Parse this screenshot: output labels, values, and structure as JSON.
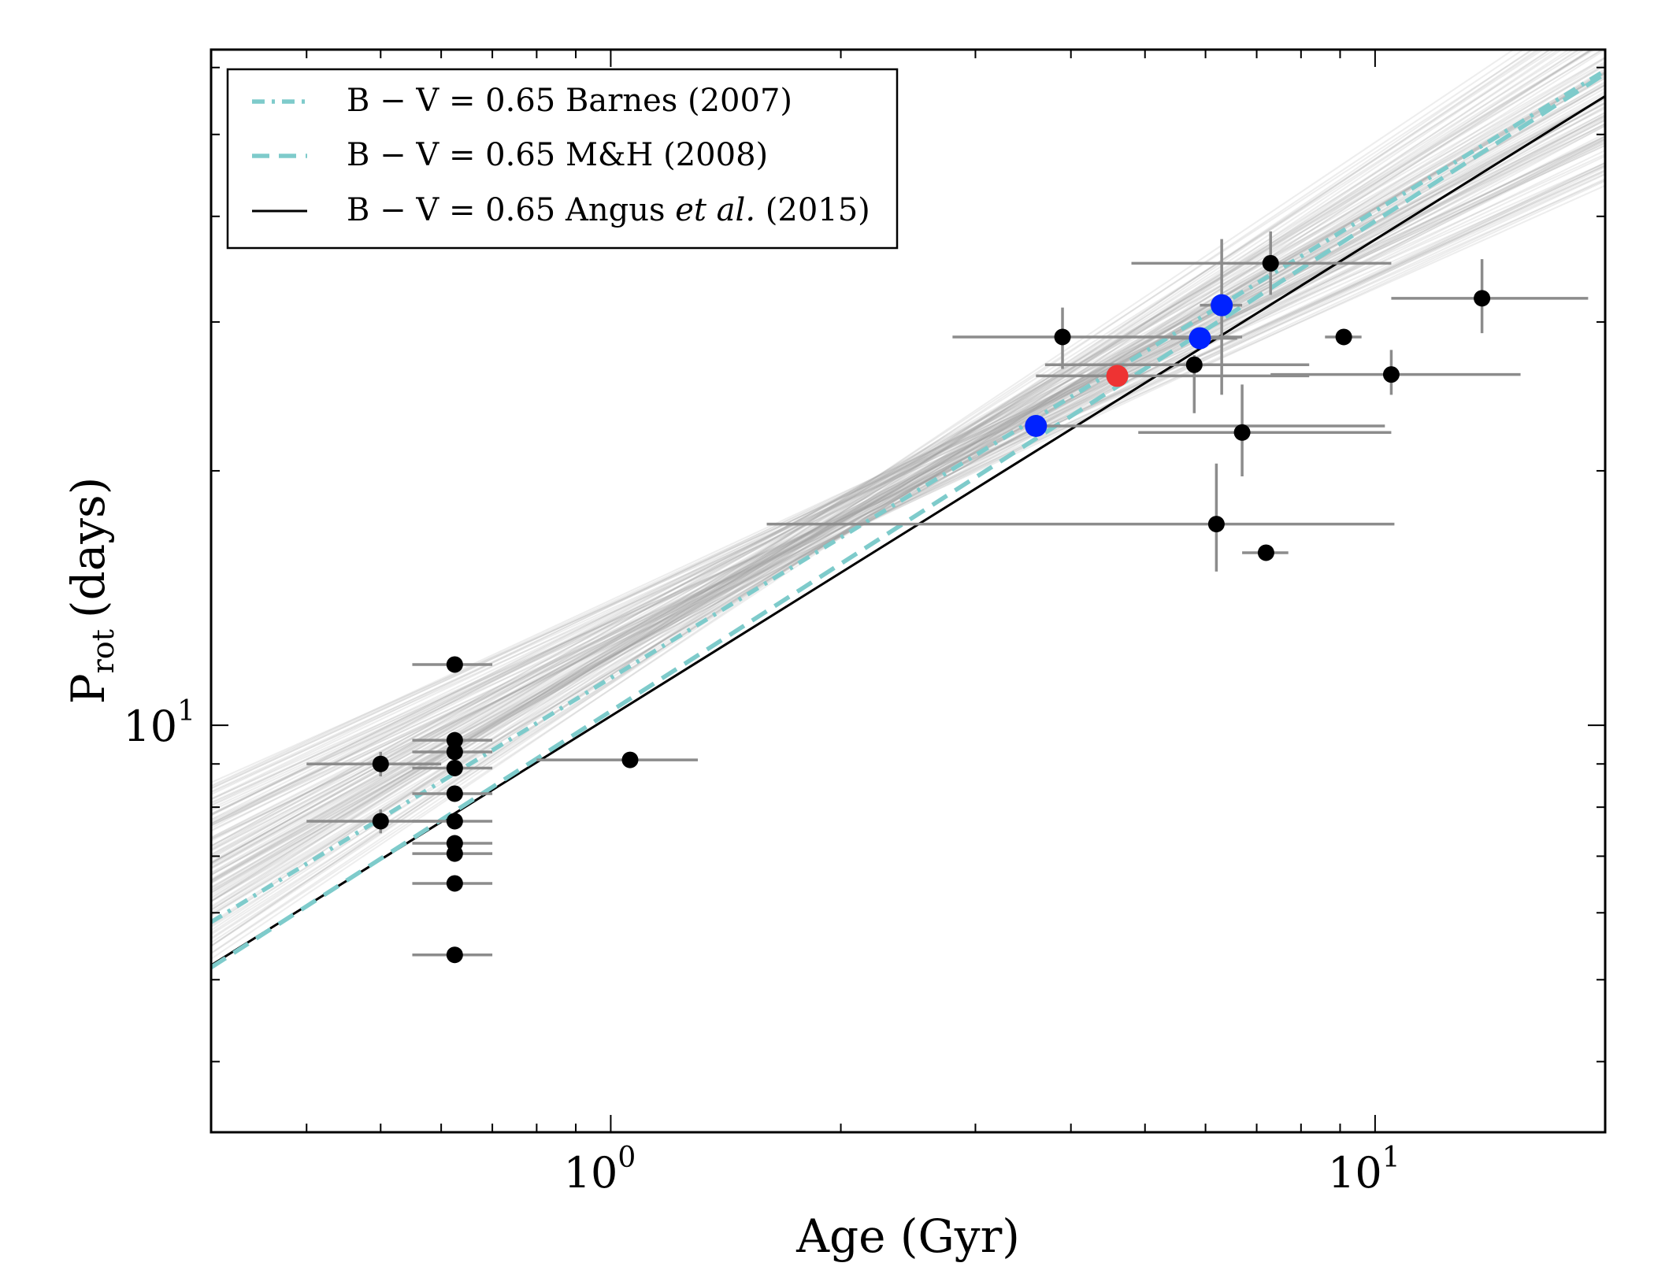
{
  "chart_data": {
    "type": "scatter",
    "x_scale": "log",
    "y_scale": "log",
    "xlim": [
      0.3,
      20
    ],
    "ylim": [
      3.3,
      63
    ],
    "xlabel": "Age (Gyr)",
    "ylabel_main": "P",
    "ylabel_sub": "rot",
    "ylabel_tail": "(days)",
    "x_ticks": [
      {
        "value": 1,
        "base": "10",
        "exp": "0"
      },
      {
        "value": 10,
        "base": "10",
        "exp": "1"
      }
    ],
    "y_ticks": [
      {
        "value": 10,
        "base": "10",
        "exp": "1"
      }
    ],
    "grid": false,
    "legend_position": "top-left",
    "legend": [
      {
        "style": "dashdot",
        "color": "#7ecbcb",
        "text": "B − V = 0.65 Barnes (2007)",
        "italic": "",
        "tail": ""
      },
      {
        "style": "dashed",
        "color": "#7ecbcb",
        "text": "B − V = 0.65 M&H (2008)",
        "italic": "",
        "tail": ""
      },
      {
        "style": "solid",
        "color": "#000000",
        "text": "B − V = 0.65 Angus ",
        "italic": "et al.",
        "tail": " (2015)"
      }
    ],
    "model_lines": [
      {
        "name": "Barnes (2007)",
        "style": "dashdot",
        "color": "#7ecbcb",
        "points": [
          [
            0.3,
            5.85
          ],
          [
            20,
            59.5
          ]
        ]
      },
      {
        "name": "M&H (2008)",
        "style": "dashed",
        "color": "#7ecbcb",
        "points": [
          [
            0.3,
            5.17
          ],
          [
            20,
            59.0
          ]
        ]
      },
      {
        "name": "Angus et al. (2015)",
        "style": "solid",
        "color": "#000000",
        "points": [
          [
            0.3,
            5.2
          ],
          [
            20,
            55.5
          ]
        ]
      }
    ],
    "posterior_samples": {
      "color": "#9a9a9a",
      "count": 120,
      "pivot": [
        2.2,
        18.5
      ],
      "slope_range": [
        0.4,
        0.62
      ]
    },
    "points": [
      {
        "x": 0.5,
        "y": 9.0,
        "xerr": [
          0.4,
          0.6
        ],
        "yerr": [
          8.7,
          9.3
        ],
        "color": "#000000"
      },
      {
        "x": 0.5,
        "y": 7.7,
        "xerr": [
          0.4,
          0.6
        ],
        "yerr": [
          7.45,
          7.95
        ],
        "color": "#000000"
      },
      {
        "x": 0.625,
        "y": 11.8,
        "xerr": [
          0.55,
          0.7
        ],
        "yerr": null,
        "color": "#000000"
      },
      {
        "x": 0.625,
        "y": 9.6,
        "xerr": [
          0.55,
          0.7
        ],
        "yerr": null,
        "color": "#000000"
      },
      {
        "x": 0.625,
        "y": 9.3,
        "xerr": [
          0.55,
          0.7
        ],
        "yerr": null,
        "color": "#000000"
      },
      {
        "x": 0.625,
        "y": 8.9,
        "xerr": [
          0.55,
          0.7
        ],
        "yerr": null,
        "color": "#000000"
      },
      {
        "x": 0.625,
        "y": 8.3,
        "xerr": [
          0.55,
          0.7
        ],
        "yerr": null,
        "color": "#000000"
      },
      {
        "x": 0.625,
        "y": 7.7,
        "xerr": [
          0.55,
          0.7
        ],
        "yerr": null,
        "color": "#000000"
      },
      {
        "x": 0.625,
        "y": 7.25,
        "xerr": [
          0.55,
          0.7
        ],
        "yerr": null,
        "color": "#000000"
      },
      {
        "x": 0.625,
        "y": 7.05,
        "xerr": [
          0.55,
          0.7
        ],
        "yerr": null,
        "color": "#000000"
      },
      {
        "x": 0.625,
        "y": 6.5,
        "xerr": [
          0.55,
          0.7
        ],
        "yerr": null,
        "color": "#000000"
      },
      {
        "x": 0.625,
        "y": 5.35,
        "xerr": [
          0.55,
          0.7
        ],
        "yerr": null,
        "color": "#000000"
      },
      {
        "x": 1.06,
        "y": 9.1,
        "xerr": [
          0.8,
          1.3
        ],
        "yerr": null,
        "color": "#000000"
      },
      {
        "x": 3.9,
        "y": 28.8,
        "xerr": [
          2.8,
          6.7
        ],
        "yerr": [
          26.4,
          31.2
        ],
        "color": "#000000"
      },
      {
        "x": 3.6,
        "y": 22.6,
        "xerr": [
          3.5,
          10.3
        ],
        "yerr": null,
        "color": "#0022ff"
      },
      {
        "x": 4.6,
        "y": 25.9,
        "xerr": [
          3.6,
          8.2
        ],
        "yerr": null,
        "color": "#ee3333"
      },
      {
        "x": 5.9,
        "y": 28.7,
        "xerr": [
          5.4,
          6.6
        ],
        "yerr": null,
        "color": "#0022ff"
      },
      {
        "x": 6.3,
        "y": 31.4,
        "xerr": [
          5.9,
          6.7
        ],
        "yerr": [
          24.6,
          37.6
        ],
        "color": "#0022ff"
      },
      {
        "x": 5.8,
        "y": 26.7,
        "xerr": [
          3.7,
          8.2
        ],
        "yerr": [
          23.4,
          27.4
        ],
        "color": "#000000"
      },
      {
        "x": 7.3,
        "y": 35.2,
        "xerr": [
          4.8,
          10.5
        ],
        "yerr": [
          32.3,
          38.4
        ],
        "color": "#000000"
      },
      {
        "x": 6.7,
        "y": 22.2,
        "xerr": [
          4.9,
          10.5
        ],
        "yerr": [
          19.7,
          25.3
        ],
        "color": "#000000"
      },
      {
        "x": 6.2,
        "y": 17.3,
        "xerr": [
          1.6,
          10.6
        ],
        "yerr": [
          15.2,
          20.4
        ],
        "color": "#000000"
      },
      {
        "x": 7.2,
        "y": 16.0,
        "xerr": [
          6.7,
          7.7
        ],
        "yerr": null,
        "color": "#000000"
      },
      {
        "x": 9.1,
        "y": 28.8,
        "xerr": [
          8.6,
          9.6
        ],
        "yerr": null,
        "color": "#000000"
      },
      {
        "x": 10.5,
        "y": 26.0,
        "xerr": [
          7.3,
          15.5
        ],
        "yerr": [
          24.6,
          27.8
        ],
        "color": "#000000"
      },
      {
        "x": 13.8,
        "y": 32.0,
        "xerr": [
          10.5,
          19.0
        ],
        "yerr": [
          29.1,
          35.6
        ],
        "color": "#000000"
      }
    ]
  }
}
